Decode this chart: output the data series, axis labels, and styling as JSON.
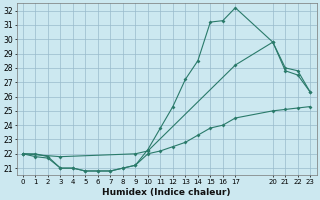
{
  "xlabel": "Humidex (Indice chaleur)",
  "background_color": "#cce8f0",
  "grid_color": "#99bbcc",
  "line_color": "#2a7a6a",
  "xlim": [
    -0.5,
    23.5
  ],
  "ylim": [
    20.5,
    32.5
  ],
  "xticks": [
    0,
    1,
    2,
    3,
    4,
    5,
    6,
    7,
    8,
    9,
    10,
    11,
    12,
    13,
    14,
    15,
    16,
    17,
    20,
    21,
    22,
    23
  ],
  "yticks": [
    21,
    22,
    23,
    24,
    25,
    26,
    27,
    28,
    29,
    30,
    31,
    32
  ],
  "curve1_x": [
    0,
    1,
    2,
    3,
    4,
    5,
    6,
    7,
    8,
    9,
    10,
    11,
    12,
    13,
    14,
    15,
    16,
    17,
    20,
    21,
    22,
    23
  ],
  "curve1_y": [
    22,
    21.8,
    21.7,
    21.0,
    21.0,
    20.8,
    20.8,
    20.8,
    21.0,
    21.2,
    22.0,
    22.2,
    22.5,
    22.8,
    23.3,
    23.8,
    24.0,
    24.5,
    25.0,
    25.1,
    25.2,
    25.3
  ],
  "curve2_x": [
    0,
    1,
    2,
    3,
    4,
    5,
    6,
    7,
    8,
    9,
    10,
    11,
    12,
    13,
    14,
    15,
    16,
    17,
    20,
    21,
    22,
    23
  ],
  "curve2_y": [
    22,
    22,
    21.8,
    21.0,
    21.0,
    20.8,
    20.8,
    20.8,
    21.0,
    21.2,
    22.3,
    23.8,
    25.3,
    27.2,
    28.5,
    31.2,
    31.3,
    32.2,
    29.8,
    27.8,
    27.5,
    26.3
  ],
  "curve3_x": [
    0,
    3,
    9,
    10,
    17,
    20,
    21,
    22,
    23
  ],
  "curve3_y": [
    22,
    21.8,
    22,
    22.2,
    28.2,
    29.8,
    28.0,
    27.8,
    26.3
  ]
}
